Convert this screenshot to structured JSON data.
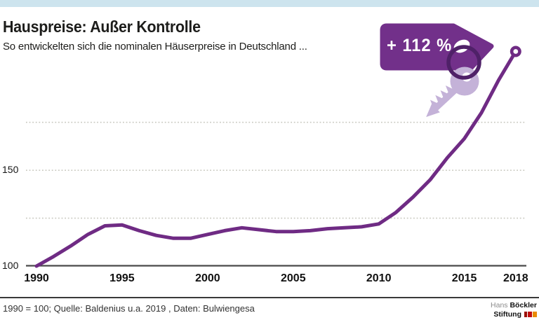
{
  "page": {
    "title": "Hauspreise: Außer Kontrolle",
    "subtitle": "So entwickelten sich die nominalen Häuserpreise in Deutschland ...",
    "footer_note": "1990 = 100; Quelle: Baldenius u.a. 2019 , Daten: Bulwiengesa",
    "logo": {
      "name_light": "Hans",
      "name_bold": "Böckler",
      "line2_bold": "Stiftung"
    }
  },
  "colors": {
    "accent_purple": "#6f2b84",
    "tag_purple": "#72308a",
    "ring_purple": "#4f2168",
    "key_lavender": "#c4b2d8",
    "topbar_blue": "#cde4ee",
    "grid_gray": "#c9c9c0",
    "axis_gray": "#4a4a4a",
    "logo_dark_red": "#9b1006",
    "logo_red": "#c00c0c",
    "logo_orange": "#ea8b00"
  },
  "chart_data": {
    "type": "line",
    "title": "Hauspreise: Außer Kontrolle",
    "subtitle": "So entwickelten sich die nominalen Häuserpreise in Deutschland ...",
    "unit_note": "1990 = 100",
    "annotation": "+ 112 %",
    "x": [
      1990,
      1991,
      1992,
      1993,
      1994,
      1995,
      1996,
      1997,
      1998,
      1999,
      2000,
      2001,
      2002,
      2003,
      2004,
      2005,
      2006,
      2007,
      2008,
      2009,
      2010,
      2011,
      2012,
      2013,
      2014,
      2015,
      2016,
      2017,
      2018
    ],
    "series": [
      {
        "name": "Nominale Häuserpreise in Deutschland (Index, 1990 = 100)",
        "values": [
          100,
          105,
          110.5,
          116.5,
          121,
          121.5,
          118.5,
          116,
          114.5,
          114.5,
          116.5,
          118.5,
          120,
          119,
          118,
          118,
          118.5,
          119.5,
          120,
          120.5,
          122,
          128,
          136,
          145,
          156.5,
          166.5,
          180,
          197,
          212
        ]
      }
    ],
    "x_ticks": [
      1990,
      1995,
      2000,
      2005,
      2010,
      2015,
      2018
    ],
    "y_ticks_labeled": [
      100,
      150
    ],
    "gridline_values": [
      125,
      150,
      175
    ],
    "xlim": [
      1990,
      2018
    ],
    "ylim": [
      100,
      215
    ],
    "grid": "horizontal-dotted",
    "legend": "none"
  }
}
